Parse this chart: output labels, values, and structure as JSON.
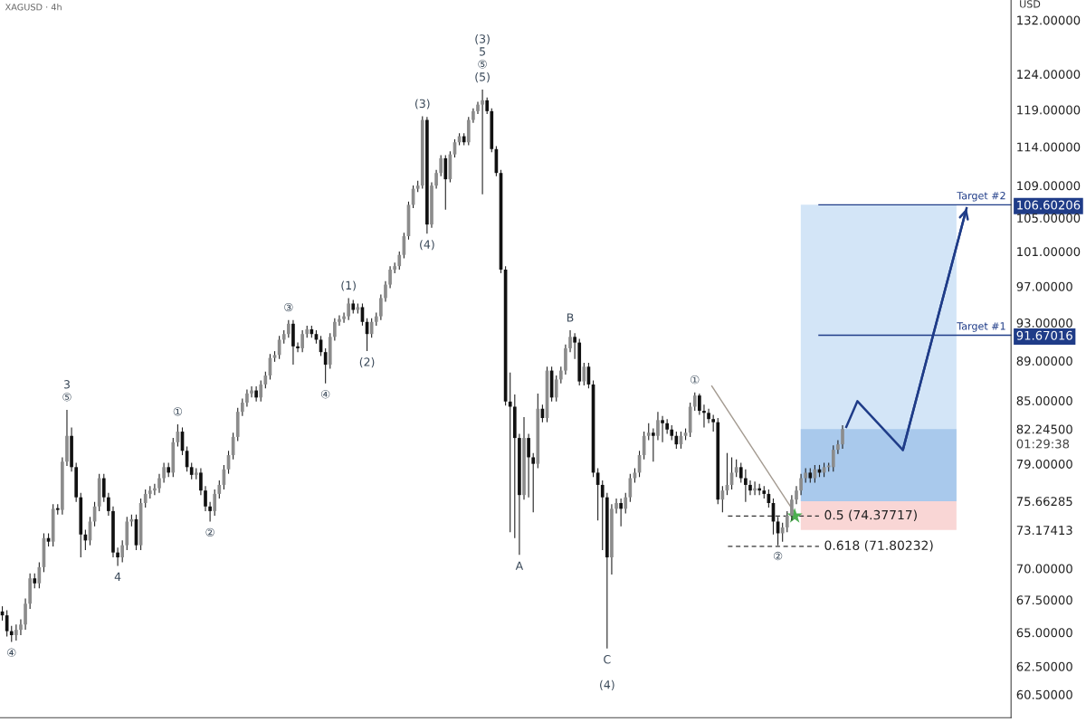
{
  "chart_data": {
    "type": "candlestick",
    "title": "XAGUSD · 4h",
    "ylabel": "USD",
    "log": true,
    "tick_labels": "y",
    "categories": [
      null,
      null,
      null,
      null,
      null,
      null,
      null,
      null,
      null,
      null,
      null,
      null,
      null,
      null,
      null,
      null,
      null,
      null,
      null,
      null,
      null,
      null,
      null,
      null,
      null,
      null,
      null,
      null,
      null,
      null,
      null,
      null,
      null,
      null,
      null,
      null,
      null,
      null,
      null,
      null,
      null,
      null,
      null,
      null,
      null,
      null,
      null,
      null,
      null,
      null,
      null,
      null,
      null,
      null,
      null,
      null,
      null,
      null,
      null,
      null,
      null,
      null,
      null,
      null,
      null,
      null,
      null,
      null,
      null,
      null,
      null,
      null,
      null,
      null,
      null,
      null,
      null,
      null,
      null,
      null,
      null,
      null,
      null,
      null,
      null,
      null,
      null,
      null,
      null,
      null,
      null,
      null,
      null,
      null,
      null,
      null,
      null,
      null,
      null,
      null,
      null,
      null,
      null,
      null,
      null,
      null,
      null,
      null,
      null,
      null,
      null,
      null,
      null,
      null,
      null,
      null,
      null,
      null,
      null,
      null,
      null,
      null,
      null,
      null,
      null,
      null,
      null,
      null,
      null,
      null,
      null,
      null,
      null,
      null,
      null,
      null,
      null,
      null,
      null,
      null,
      null,
      null,
      null,
      null,
      null,
      null,
      null,
      null,
      null,
      null,
      null,
      null,
      null,
      null,
      null,
      null,
      null,
      null,
      null,
      null,
      null,
      null,
      null,
      null,
      null,
      null,
      null,
      null,
      null,
      null,
      null,
      null,
      null,
      null,
      null,
      null,
      null,
      null,
      null,
      null,
      null,
      null,
      null,
      null,
      null,
      null,
      null,
      null,
      null,
      null,
      null,
      null,
      null,
      null,
      null,
      null,
      null,
      null,
      null,
      null,
      null,
      null,
      null,
      null,
      null,
      null,
      null,
      null,
      null,
      null,
      null,
      null,
      null,
      null,
      null,
      null,
      null,
      null,
      null
    ],
    "value_labels": [
      null,
      null,
      "④",
      null,
      null,
      null,
      null,
      null,
      null,
      null,
      null,
      null,
      null,
      null,
      "3\n⑤",
      null,
      null,
      null,
      null,
      null,
      null,
      null,
      null,
      null,
      null,
      "4",
      null,
      null,
      null,
      null,
      null,
      null,
      null,
      null,
      null,
      null,
      null,
      null,
      "①",
      null,
      null,
      null,
      null,
      null,
      null,
      "②",
      null,
      null,
      null,
      null,
      null,
      null,
      null,
      null,
      null,
      null,
      null,
      null,
      null,
      null,
      null,
      null,
      "③",
      null,
      null,
      null,
      null,
      null,
      null,
      null,
      "④",
      null,
      null,
      null,
      null,
      "(1)",
      null,
      null,
      null,
      "(2)",
      null,
      null,
      null,
      null,
      null,
      null,
      null,
      null,
      null,
      null,
      null,
      "(3)",
      "(4)",
      null,
      null,
      null,
      null,
      null,
      null,
      null,
      null,
      null,
      null,
      null,
      "(3)\n5\n⑤\n(5)",
      null,
      null,
      null,
      null,
      null,
      null,
      null,
      "A",
      null,
      null,
      null,
      null,
      null,
      null,
      null,
      null,
      null,
      null,
      "B",
      null,
      null,
      null,
      null,
      null,
      null,
      null,
      "C\n\n(4)",
      null,
      null,
      null,
      null,
      null,
      null,
      null,
      null,
      null,
      null,
      null,
      null,
      null,
      null,
      null,
      null,
      null,
      null,
      "①",
      null,
      null,
      null,
      null,
      null,
      null,
      null,
      null,
      null,
      null,
      null,
      null,
      null,
      null,
      null,
      null,
      null,
      "②",
      null,
      null,
      null,
      null,
      null,
      null,
      null,
      null,
      null,
      null,
      null,
      null,
      null,
      null,
      null,
      null,
      null,
      null,
      null,
      null,
      null,
      null,
      null,
      null,
      null,
      null,
      null,
      null,
      null,
      null,
      null,
      null,
      null,
      null,
      null,
      null,
      null,
      null,
      null,
      null,
      null,
      null,
      null,
      null,
      null,
      null,
      null,
      null,
      null,
      null
    ],
    "ohlc": [
      [
        66.6,
        67.0,
        65.9,
        66.3
      ],
      [
        66.3,
        66.7,
        64.7,
        65.1
      ],
      [
        65.1,
        65.5,
        64.3,
        64.8
      ],
      [
        64.8,
        65.6,
        64.4,
        65.2
      ],
      [
        65.2,
        66.0,
        64.8,
        65.6
      ],
      [
        65.6,
        67.6,
        65.2,
        67.2
      ],
      [
        67.2,
        69.6,
        66.8,
        69.2
      ],
      [
        69.2,
        69.6,
        68.4,
        68.8
      ],
      [
        68.8,
        70.5,
        68.4,
        70.1
      ],
      [
        70.1,
        72.9,
        69.7,
        72.5
      ],
      [
        72.5,
        72.9,
        71.8,
        72.2
      ],
      [
        72.2,
        75.4,
        71.8,
        75.0
      ],
      [
        75.0,
        75.4,
        74.5,
        74.9
      ],
      [
        74.9,
        79.6,
        74.5,
        79.2
      ],
      [
        79.2,
        84.1,
        78.8,
        81.6
      ],
      [
        81.6,
        82.4,
        78.3,
        78.7
      ],
      [
        78.7,
        79.1,
        75.6,
        76.0
      ],
      [
        76.0,
        76.4,
        70.9,
        72.8
      ],
      [
        72.8,
        73.2,
        71.5,
        72.3
      ],
      [
        72.3,
        74.3,
        71.9,
        73.9
      ],
      [
        73.9,
        75.6,
        73.5,
        75.2
      ],
      [
        75.2,
        78.1,
        74.8,
        77.7
      ],
      [
        77.7,
        78.1,
        75.6,
        76.0
      ],
      [
        76.0,
        76.4,
        74.4,
        74.8
      ],
      [
        74.8,
        75.2,
        70.9,
        71.3
      ],
      [
        71.3,
        71.7,
        70.2,
        70.9
      ],
      [
        70.9,
        72.3,
        70.5,
        71.9
      ],
      [
        71.9,
        74.3,
        71.5,
        73.9
      ],
      [
        73.9,
        74.5,
        73.5,
        74.1
      ],
      [
        74.1,
        74.5,
        71.5,
        71.9
      ],
      [
        71.9,
        75.9,
        71.5,
        75.5
      ],
      [
        75.5,
        76.7,
        75.1,
        76.3
      ],
      [
        76.3,
        77.0,
        75.9,
        76.6
      ],
      [
        76.6,
        77.2,
        76.2,
        76.8
      ],
      [
        76.8,
        78.1,
        76.4,
        77.7
      ],
      [
        77.7,
        79.1,
        77.3,
        78.7
      ],
      [
        78.7,
        79.1,
        77.8,
        78.2
      ],
      [
        78.2,
        81.4,
        77.8,
        81.0
      ],
      [
        81.0,
        82.7,
        80.6,
        82.0
      ],
      [
        82.0,
        82.4,
        79.8,
        80.2
      ],
      [
        80.2,
        80.6,
        78.3,
        78.7
      ],
      [
        78.7,
        79.1,
        77.6,
        78.0
      ],
      [
        78.0,
        78.6,
        77.6,
        78.2
      ],
      [
        78.2,
        78.6,
        76.2,
        76.6
      ],
      [
        76.6,
        77.0,
        74.8,
        75.2
      ],
      [
        75.2,
        75.6,
        73.9,
        74.8
      ],
      [
        74.8,
        76.7,
        74.4,
        76.3
      ],
      [
        76.3,
        77.5,
        75.9,
        77.1
      ],
      [
        77.1,
        78.9,
        76.7,
        78.5
      ],
      [
        78.5,
        80.2,
        78.1,
        79.8
      ],
      [
        79.8,
        81.9,
        79.4,
        81.5
      ],
      [
        81.5,
        84.3,
        81.1,
        83.9
      ],
      [
        83.9,
        85.2,
        83.5,
        84.8
      ],
      [
        84.8,
        86.1,
        84.4,
        85.7
      ],
      [
        85.7,
        86.4,
        85.3,
        86.0
      ],
      [
        86.0,
        86.4,
        84.9,
        85.3
      ],
      [
        85.3,
        87.0,
        84.9,
        86.6
      ],
      [
        86.6,
        87.9,
        86.2,
        87.5
      ],
      [
        87.5,
        89.7,
        87.1,
        89.3
      ],
      [
        89.3,
        90.0,
        88.9,
        89.6
      ],
      [
        89.6,
        91.6,
        89.2,
        91.2
      ],
      [
        91.2,
        92.2,
        90.8,
        91.8
      ],
      [
        91.8,
        93.3,
        91.4,
        92.9
      ],
      [
        92.9,
        93.3,
        88.6,
        90.5
      ],
      [
        90.5,
        90.9,
        89.9,
        90.3
      ],
      [
        90.3,
        92.2,
        89.9,
        91.8
      ],
      [
        91.8,
        92.7,
        91.4,
        92.3
      ],
      [
        92.3,
        92.7,
        91.4,
        91.8
      ],
      [
        91.8,
        92.2,
        90.8,
        91.2
      ],
      [
        91.2,
        91.6,
        89.5,
        89.9
      ],
      [
        89.9,
        90.3,
        86.7,
        88.6
      ],
      [
        88.6,
        91.9,
        88.2,
        91.5
      ],
      [
        91.5,
        93.5,
        91.1,
        93.1
      ],
      [
        93.1,
        93.8,
        92.7,
        93.4
      ],
      [
        93.4,
        94.1,
        93.0,
        93.7
      ],
      [
        93.7,
        95.7,
        93.3,
        95.1
      ],
      [
        95.1,
        95.5,
        94.0,
        94.4
      ],
      [
        94.4,
        95.1,
        94.0,
        94.7
      ],
      [
        94.7,
        95.1,
        92.7,
        93.1
      ],
      [
        93.1,
        93.5,
        90.0,
        91.8
      ],
      [
        91.8,
        93.5,
        91.4,
        93.1
      ],
      [
        93.1,
        94.1,
        92.7,
        93.7
      ],
      [
        93.7,
        96.1,
        93.3,
        95.7
      ],
      [
        95.7,
        97.6,
        95.3,
        97.2
      ],
      [
        97.2,
        99.3,
        96.8,
        98.9
      ],
      [
        98.9,
        99.7,
        98.5,
        99.3
      ],
      [
        99.3,
        101.0,
        98.9,
        100.6
      ],
      [
        100.6,
        103.2,
        100.2,
        102.8
      ],
      [
        102.8,
        107.0,
        102.4,
        106.6
      ],
      [
        106.6,
        109.0,
        106.2,
        108.6
      ],
      [
        108.6,
        109.6,
        108.2,
        109.0
      ],
      [
        109.0,
        118.1,
        108.6,
        117.6
      ],
      [
        117.6,
        118.0,
        103.1,
        104.2
      ],
      [
        104.2,
        109.4,
        103.8,
        109.0
      ],
      [
        109.0,
        111.0,
        108.6,
        110.6
      ],
      [
        110.6,
        112.9,
        110.2,
        112.5
      ],
      [
        112.5,
        112.9,
        106.0,
        109.8
      ],
      [
        109.8,
        113.4,
        109.4,
        113.0
      ],
      [
        113.0,
        115.0,
        112.6,
        114.6
      ],
      [
        114.6,
        115.8,
        114.2,
        115.4
      ],
      [
        115.4,
        115.8,
        114.2,
        114.6
      ],
      [
        114.6,
        118.0,
        114.2,
        117.6
      ],
      [
        117.6,
        119.2,
        117.2,
        118.8
      ],
      [
        118.8,
        120.1,
        118.4,
        119.7
      ],
      [
        119.7,
        121.8,
        107.9,
        120.3
      ],
      [
        120.3,
        120.7,
        118.4,
        118.8
      ],
      [
        118.8,
        119.2,
        113.3,
        113.7
      ],
      [
        113.7,
        114.1,
        110.2,
        110.6
      ],
      [
        110.6,
        111.0,
        98.5,
        98.9
      ],
      [
        98.9,
        99.3,
        84.5,
        84.9
      ],
      [
        84.9,
        87.8,
        73.0,
        84.4
      ],
      [
        84.4,
        85.6,
        72.5,
        81.4
      ],
      [
        81.4,
        81.8,
        71.1,
        76.2
      ],
      [
        76.2,
        83.4,
        75.8,
        81.4
      ],
      [
        81.4,
        81.8,
        76.0,
        79.6
      ],
      [
        79.6,
        80.0,
        74.7,
        79.0
      ],
      [
        79.0,
        85.7,
        78.6,
        84.2
      ],
      [
        84.2,
        84.6,
        82.9,
        83.3
      ],
      [
        83.3,
        88.4,
        82.9,
        88.0
      ],
      [
        88.0,
        88.4,
        84.9,
        85.3
      ],
      [
        85.3,
        87.5,
        84.9,
        87.1
      ],
      [
        87.1,
        88.4,
        86.7,
        88.0
      ],
      [
        88.0,
        90.7,
        87.6,
        90.3
      ],
      [
        90.3,
        92.2,
        89.9,
        91.5
      ],
      [
        91.5,
        91.9,
        89.2,
        90.9
      ],
      [
        90.9,
        91.3,
        86.5,
        86.9
      ],
      [
        86.9,
        88.8,
        86.5,
        88.4
      ],
      [
        88.4,
        88.8,
        86.2,
        86.6
      ],
      [
        86.6,
        87.0,
        77.8,
        78.2
      ],
      [
        78.2,
        78.6,
        74.0,
        77.1
      ],
      [
        77.1,
        77.5,
        71.5,
        76.0
      ],
      [
        76.0,
        76.4,
        63.8,
        70.9
      ],
      [
        70.9,
        75.4,
        69.5,
        75.0
      ],
      [
        75.0,
        75.9,
        74.6,
        75.5
      ],
      [
        75.5,
        75.9,
        73.5,
        75.0
      ],
      [
        75.0,
        76.4,
        74.6,
        76.0
      ],
      [
        76.0,
        78.1,
        75.6,
        77.7
      ],
      [
        77.7,
        78.6,
        77.3,
        78.2
      ],
      [
        78.2,
        80.2,
        77.8,
        79.8
      ],
      [
        79.8,
        82.0,
        79.4,
        81.6
      ],
      [
        81.6,
        82.8,
        81.2,
        81.9
      ],
      [
        81.9,
        82.3,
        79.2,
        81.6
      ],
      [
        81.6,
        83.9,
        81.2,
        83.1
      ],
      [
        83.1,
        83.5,
        81.0,
        82.8
      ],
      [
        82.8,
        83.2,
        81.8,
        82.2
      ],
      [
        82.2,
        82.6,
        81.2,
        81.6
      ],
      [
        81.6,
        82.0,
        80.4,
        80.8
      ],
      [
        80.8,
        82.0,
        80.4,
        81.6
      ],
      [
        81.6,
        82.3,
        81.2,
        81.9
      ],
      [
        81.9,
        84.8,
        81.5,
        84.4
      ],
      [
        84.4,
        85.8,
        84.0,
        85.5
      ],
      [
        85.5,
        85.7,
        83.6,
        84.0
      ],
      [
        84.0,
        84.6,
        82.4,
        83.8
      ],
      [
        83.8,
        84.2,
        82.8,
        83.2
      ],
      [
        83.2,
        83.6,
        82.0,
        82.9
      ],
      [
        82.9,
        83.3,
        75.4,
        75.8
      ],
      [
        75.8,
        77.0,
        74.7,
        76.6
      ],
      [
        76.6,
        80.0,
        76.2,
        77.1
      ],
      [
        77.1,
        79.6,
        76.7,
        78.2
      ],
      [
        78.2,
        79.4,
        77.8,
        78.7
      ],
      [
        78.7,
        79.1,
        77.3,
        77.7
      ],
      [
        77.7,
        78.5,
        75.6,
        77.1
      ],
      [
        77.1,
        77.5,
        76.2,
        76.6
      ],
      [
        76.6,
        77.4,
        76.2,
        76.8
      ],
      [
        76.8,
        77.2,
        76.2,
        76.6
      ],
      [
        76.6,
        77.0,
        75.9,
        76.3
      ],
      [
        76.3,
        76.7,
        75.1,
        75.5
      ],
      [
        75.5,
        75.9,
        72.8,
        73.9
      ],
      [
        73.9,
        74.3,
        71.9,
        72.9
      ],
      [
        72.9,
        73.8,
        72.2,
        73.4
      ],
      [
        73.4,
        74.8,
        73.0,
        74.4
      ],
      [
        74.4,
        76.2,
        74.0,
        75.8
      ],
      [
        75.8,
        77.0,
        75.4,
        76.6
      ],
      [
        76.6,
        78.1,
        76.2,
        77.7
      ],
      [
        77.7,
        78.6,
        77.3,
        78.2
      ],
      [
        78.2,
        78.6,
        77.3,
        77.7
      ],
      [
        77.7,
        78.9,
        77.3,
        78.5
      ],
      [
        78.5,
        78.9,
        77.8,
        78.2
      ],
      [
        78.2,
        79.1,
        77.8,
        78.7
      ],
      [
        78.7,
        79.1,
        78.3,
        78.7
      ],
      [
        78.7,
        80.7,
        78.3,
        80.3
      ],
      [
        80.3,
        81.2,
        79.9,
        80.8
      ],
      [
        80.8,
        82.6,
        80.4,
        82.245
      ],
      null,
      null,
      null,
      null,
      null,
      null,
      null,
      null,
      null,
      null,
      null,
      null,
      null,
      null,
      null,
      null,
      null,
      null,
      null,
      null,
      null,
      null,
      null,
      null,
      null,
      null,
      null,
      null,
      null,
      null,
      null,
      null,
      null,
      null,
      null,
      null
    ],
    "ylim": [
      58.9,
      135.1
    ],
    "annotations": [
      "01:29:38"
    ],
    "yticks": [
      {
        "value": 132,
        "label": "132.00000"
      },
      {
        "value": 124,
        "label": "124.00000"
      },
      {
        "value": 119,
        "label": "119.00000"
      },
      {
        "value": 114,
        "label": "114.00000"
      },
      {
        "value": 109,
        "label": "109.00000"
      },
      {
        "value": 106.60206,
        "label": "106.60206"
      },
      {
        "value": 105,
        "label": "105.00000"
      },
      {
        "value": 101,
        "label": "101.00000"
      },
      {
        "value": 97,
        "label": "97.00000"
      },
      {
        "value": 93,
        "label": "93.00000"
      },
      {
        "value": 91.67016,
        "label": "91.67016"
      },
      {
        "value": 89,
        "label": "89.00000"
      },
      {
        "value": 85,
        "label": "85.00000"
      },
      {
        "value": 82.245,
        "label": "82.24500"
      },
      {
        "value": 79,
        "label": "79.00000"
      },
      {
        "value": 75.66285,
        "label": "75.66285"
      },
      {
        "value": 73.17413,
        "label": "73.17413"
      },
      {
        "value": 70,
        "label": "70.00000"
      },
      {
        "value": 67.5,
        "label": "67.50000"
      },
      {
        "value": 65,
        "label": "65.00000"
      },
      {
        "value": 62.5,
        "label": "62.50000"
      },
      {
        "value": 60.5,
        "label": "60.50000"
      }
    ],
    "ref_lines": [
      {
        "axis": "y",
        "value": 106.60206,
        "label": "Target #2",
        "color": "#1f3c88",
        "line_style": "solid"
      },
      {
        "axis": "y",
        "value": 91.67016,
        "label": "Target #1",
        "color": "#1f3c88",
        "line_style": "solid"
      },
      {
        "axis": "y",
        "value": 74.37717,
        "label": "0.5 (74.37717)",
        "color": "#333333",
        "line_style": "dashed"
      },
      {
        "axis": "y",
        "value": 71.80232,
        "label": "0.618 (71.80232)",
        "color": "#333333",
        "line_style": "dashed"
      }
    ],
    "bands": [
      {
        "axis": "y",
        "from": 75.66285,
        "to": 106.60206,
        "color": "#d3e5f7"
      },
      {
        "axis": "y",
        "from": 75.66285,
        "to": 82.245,
        "color": "#a9c9ec"
      },
      {
        "axis": "y",
        "from": 73.17413,
        "to": 75.66285,
        "color": "#f9d6d5"
      }
    ]
  }
}
